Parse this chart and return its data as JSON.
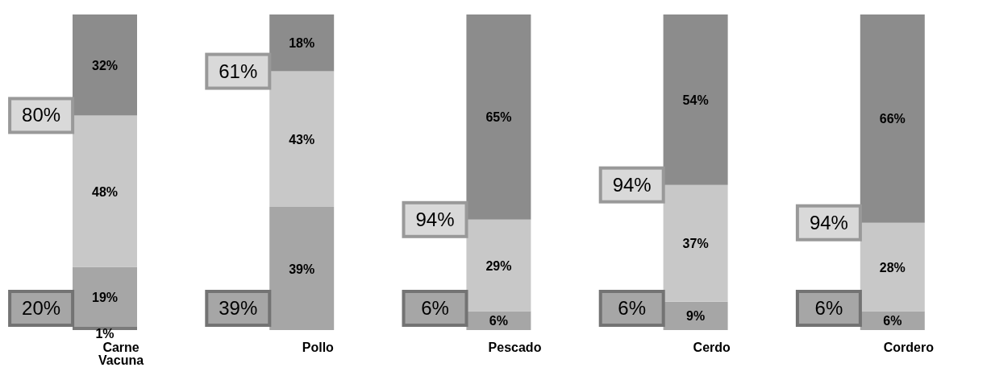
{
  "chart_data": {
    "type": "bar",
    "stacked": true,
    "categories": [
      "Carne Vacuna",
      "Pollo",
      "Pescado",
      "Cerdo",
      "Cordero"
    ],
    "series": [
      {
        "color": "#7a7a7a",
        "values": [
          1,
          null,
          null,
          null,
          null
        ],
        "value_labels": [
          "1%",
          null,
          null,
          null,
          null
        ]
      },
      {
        "color": "#a6a6a6",
        "values": [
          19,
          39,
          6,
          9,
          6
        ],
        "value_labels": [
          "19%",
          "39%",
          "6%",
          "9%",
          "6%"
        ]
      },
      {
        "color": "#c8c8c8",
        "values": [
          48,
          43,
          29,
          37,
          28
        ],
        "value_labels": [
          "48%",
          "43%",
          "29%",
          "37%",
          "28%"
        ]
      },
      {
        "color": "#8c8c8c",
        "values": [
          32,
          18,
          65,
          54,
          66
        ],
        "value_labels": [
          "32%",
          "18%",
          "65%",
          "54%",
          "66%"
        ]
      }
    ],
    "annotations": [
      "80%",
      "20%",
      "61%",
      "39%",
      "94%",
      "6%",
      "94%",
      "6%",
      "94%",
      "6%"
    ],
    "grid": false,
    "legend": false
  }
}
